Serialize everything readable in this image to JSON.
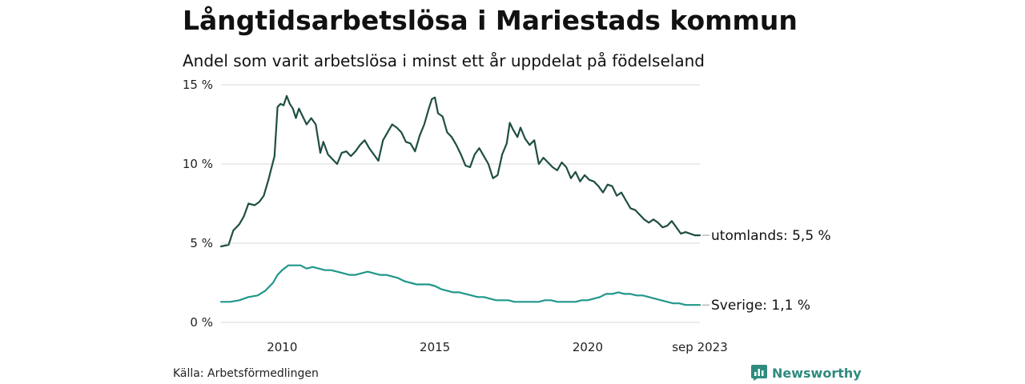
{
  "chart_data": {
    "type": "line",
    "title": "Långtidsarbetslösa i Mariestads kommun",
    "subtitle": "Andel som varit arbetslösa i minst ett år uppdelat på födelseland",
    "xlabel": "",
    "ylabel": "",
    "x_range": [
      2008.0,
      2023.67
    ],
    "ylim": [
      0,
      15
    ],
    "y_ticks": [
      {
        "value": 0,
        "label": "0 %"
      },
      {
        "value": 5,
        "label": "5 %"
      },
      {
        "value": 10,
        "label": "10 %"
      },
      {
        "value": 15,
        "label": "15 %"
      }
    ],
    "x_ticks": [
      {
        "value": 2010,
        "label": "2010"
      },
      {
        "value": 2015,
        "label": "2015"
      },
      {
        "value": 2020,
        "label": "2020"
      },
      {
        "value": 2023.67,
        "label": "sep 2023"
      }
    ],
    "grid": "horizontal",
    "legend": "end-labels",
    "series": [
      {
        "name": "utomlands",
        "end_label": "utomlands: 5,5 %",
        "color": "#1f4e44",
        "points": [
          [
            2008.0,
            4.8
          ],
          [
            2008.25,
            4.9
          ],
          [
            2008.4,
            5.8
          ],
          [
            2008.6,
            6.2
          ],
          [
            2008.75,
            6.7
          ],
          [
            2008.9,
            7.5
          ],
          [
            2009.1,
            7.4
          ],
          [
            2009.25,
            7.6
          ],
          [
            2009.4,
            8.0
          ],
          [
            2009.55,
            9.0
          ],
          [
            2009.75,
            10.5
          ],
          [
            2009.85,
            13.6
          ],
          [
            2009.95,
            13.8
          ],
          [
            2010.05,
            13.7
          ],
          [
            2010.15,
            14.3
          ],
          [
            2010.25,
            13.8
          ],
          [
            2010.35,
            13.5
          ],
          [
            2010.45,
            12.9
          ],
          [
            2010.55,
            13.5
          ],
          [
            2010.65,
            13.1
          ],
          [
            2010.8,
            12.5
          ],
          [
            2010.95,
            12.9
          ],
          [
            2011.1,
            12.5
          ],
          [
            2011.25,
            10.7
          ],
          [
            2011.35,
            11.4
          ],
          [
            2011.5,
            10.6
          ],
          [
            2011.65,
            10.3
          ],
          [
            2011.8,
            10.0
          ],
          [
            2011.95,
            10.7
          ],
          [
            2012.1,
            10.8
          ],
          [
            2012.25,
            10.5
          ],
          [
            2012.4,
            10.8
          ],
          [
            2012.55,
            11.2
          ],
          [
            2012.7,
            11.5
          ],
          [
            2012.85,
            11.0
          ],
          [
            2013.0,
            10.6
          ],
          [
            2013.15,
            10.2
          ],
          [
            2013.3,
            11.5
          ],
          [
            2013.45,
            12.0
          ],
          [
            2013.6,
            12.5
          ],
          [
            2013.75,
            12.3
          ],
          [
            2013.9,
            12.0
          ],
          [
            2014.05,
            11.4
          ],
          [
            2014.2,
            11.3
          ],
          [
            2014.35,
            10.8
          ],
          [
            2014.5,
            11.8
          ],
          [
            2014.65,
            12.5
          ],
          [
            2014.8,
            13.5
          ],
          [
            2014.9,
            14.1
          ],
          [
            2015.0,
            14.2
          ],
          [
            2015.1,
            13.2
          ],
          [
            2015.25,
            13.0
          ],
          [
            2015.4,
            12.0
          ],
          [
            2015.55,
            11.7
          ],
          [
            2015.7,
            11.2
          ],
          [
            2015.85,
            10.6
          ],
          [
            2016.0,
            9.9
          ],
          [
            2016.15,
            9.8
          ],
          [
            2016.3,
            10.6
          ],
          [
            2016.45,
            11.0
          ],
          [
            2016.6,
            10.5
          ],
          [
            2016.75,
            10.0
          ],
          [
            2016.9,
            9.1
          ],
          [
            2017.05,
            9.3
          ],
          [
            2017.2,
            10.6
          ],
          [
            2017.35,
            11.3
          ],
          [
            2017.45,
            12.6
          ],
          [
            2017.55,
            12.2
          ],
          [
            2017.7,
            11.7
          ],
          [
            2017.8,
            12.3
          ],
          [
            2017.95,
            11.6
          ],
          [
            2018.1,
            11.2
          ],
          [
            2018.25,
            11.5
          ],
          [
            2018.4,
            10.0
          ],
          [
            2018.55,
            10.4
          ],
          [
            2018.7,
            10.1
          ],
          [
            2018.85,
            9.8
          ],
          [
            2019.0,
            9.6
          ],
          [
            2019.15,
            10.1
          ],
          [
            2019.3,
            9.8
          ],
          [
            2019.45,
            9.1
          ],
          [
            2019.6,
            9.5
          ],
          [
            2019.75,
            8.9
          ],
          [
            2019.9,
            9.3
          ],
          [
            2020.05,
            9.0
          ],
          [
            2020.2,
            8.9
          ],
          [
            2020.35,
            8.6
          ],
          [
            2020.5,
            8.2
          ],
          [
            2020.65,
            8.7
          ],
          [
            2020.8,
            8.6
          ],
          [
            2020.95,
            8.0
          ],
          [
            2021.1,
            8.2
          ],
          [
            2021.25,
            7.7
          ],
          [
            2021.4,
            7.2
          ],
          [
            2021.55,
            7.1
          ],
          [
            2021.7,
            6.8
          ],
          [
            2021.85,
            6.5
          ],
          [
            2022.0,
            6.3
          ],
          [
            2022.15,
            6.5
          ],
          [
            2022.3,
            6.3
          ],
          [
            2022.45,
            6.0
          ],
          [
            2022.6,
            6.1
          ],
          [
            2022.75,
            6.4
          ],
          [
            2022.9,
            6.0
          ],
          [
            2023.05,
            5.6
          ],
          [
            2023.2,
            5.7
          ],
          [
            2023.35,
            5.6
          ],
          [
            2023.5,
            5.5
          ],
          [
            2023.67,
            5.5
          ]
        ]
      },
      {
        "name": "Sverige",
        "end_label": "Sverige: 1,1 %",
        "color": "#20978a",
        "points": [
          [
            2008.0,
            1.3
          ],
          [
            2008.3,
            1.3
          ],
          [
            2008.6,
            1.4
          ],
          [
            2008.9,
            1.6
          ],
          [
            2009.2,
            1.7
          ],
          [
            2009.45,
            2.0
          ],
          [
            2009.7,
            2.5
          ],
          [
            2009.85,
            3.0
          ],
          [
            2010.0,
            3.3
          ],
          [
            2010.2,
            3.6
          ],
          [
            2010.4,
            3.6
          ],
          [
            2010.6,
            3.6
          ],
          [
            2010.8,
            3.4
          ],
          [
            2011.0,
            3.5
          ],
          [
            2011.2,
            3.4
          ],
          [
            2011.4,
            3.3
          ],
          [
            2011.6,
            3.3
          ],
          [
            2011.8,
            3.2
          ],
          [
            2012.0,
            3.1
          ],
          [
            2012.2,
            3.0
          ],
          [
            2012.4,
            3.0
          ],
          [
            2012.6,
            3.1
          ],
          [
            2012.8,
            3.2
          ],
          [
            2013.0,
            3.1
          ],
          [
            2013.2,
            3.0
          ],
          [
            2013.4,
            3.0
          ],
          [
            2013.6,
            2.9
          ],
          [
            2013.8,
            2.8
          ],
          [
            2014.0,
            2.6
          ],
          [
            2014.2,
            2.5
          ],
          [
            2014.4,
            2.4
          ],
          [
            2014.6,
            2.4
          ],
          [
            2014.8,
            2.4
          ],
          [
            2015.0,
            2.3
          ],
          [
            2015.2,
            2.1
          ],
          [
            2015.4,
            2.0
          ],
          [
            2015.6,
            1.9
          ],
          [
            2015.8,
            1.9
          ],
          [
            2016.0,
            1.8
          ],
          [
            2016.2,
            1.7
          ],
          [
            2016.4,
            1.6
          ],
          [
            2016.6,
            1.6
          ],
          [
            2016.8,
            1.5
          ],
          [
            2017.0,
            1.4
          ],
          [
            2017.2,
            1.4
          ],
          [
            2017.4,
            1.4
          ],
          [
            2017.6,
            1.3
          ],
          [
            2017.8,
            1.3
          ],
          [
            2018.0,
            1.3
          ],
          [
            2018.2,
            1.3
          ],
          [
            2018.4,
            1.3
          ],
          [
            2018.6,
            1.4
          ],
          [
            2018.8,
            1.4
          ],
          [
            2019.0,
            1.3
          ],
          [
            2019.2,
            1.3
          ],
          [
            2019.4,
            1.3
          ],
          [
            2019.6,
            1.3
          ],
          [
            2019.8,
            1.4
          ],
          [
            2020.0,
            1.4
          ],
          [
            2020.2,
            1.5
          ],
          [
            2020.4,
            1.6
          ],
          [
            2020.6,
            1.8
          ],
          [
            2020.8,
            1.8
          ],
          [
            2021.0,
            1.9
          ],
          [
            2021.2,
            1.8
          ],
          [
            2021.4,
            1.8
          ],
          [
            2021.6,
            1.7
          ],
          [
            2021.8,
            1.7
          ],
          [
            2022.0,
            1.6
          ],
          [
            2022.2,
            1.5
          ],
          [
            2022.4,
            1.4
          ],
          [
            2022.6,
            1.3
          ],
          [
            2022.8,
            1.2
          ],
          [
            2023.0,
            1.2
          ],
          [
            2023.2,
            1.1
          ],
          [
            2023.4,
            1.1
          ],
          [
            2023.67,
            1.1
          ]
        ]
      }
    ]
  },
  "footer": {
    "source": "Källa: Arbetsförmedlingen",
    "brand": "Newsworthy"
  },
  "colors": {
    "grid": "#d9d9d9",
    "brand": "#2e8b7e"
  }
}
